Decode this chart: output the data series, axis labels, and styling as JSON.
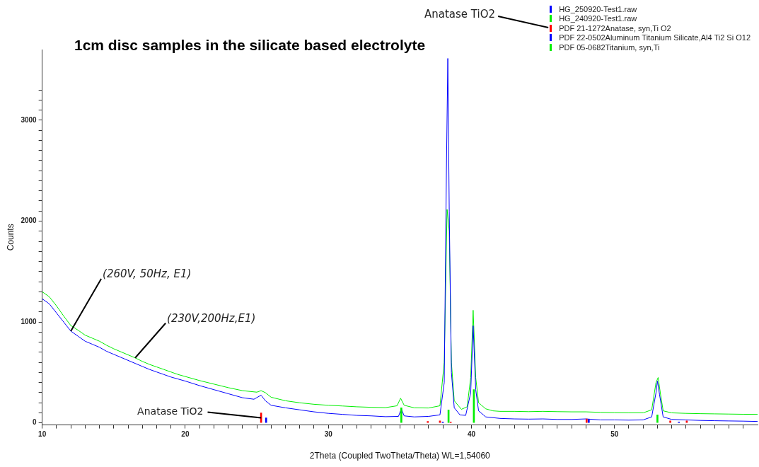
{
  "chart_data": {
    "type": "line",
    "title": "1cm disc samples in the silicate based electrolyte",
    "xlabel": "2Theta (Coupled TwoTheta/Theta) WL=1,54060",
    "ylabel": "Counts",
    "xlim": [
      10,
      60
    ],
    "ylim": [
      -20,
      3700
    ],
    "xticks": [
      10,
      {
        "value": 11,
        "label": null
      },
      {
        "value": 12,
        "label": null
      },
      {
        "value": 13,
        "label": null
      },
      {
        "value": 14,
        "label": null
      },
      {
        "value": 15,
        "label": null
      },
      {
        "value": 16,
        "label": null
      },
      {
        "value": 17,
        "label": null
      },
      {
        "value": 18,
        "label": null
      },
      {
        "value": 19,
        "label": null
      },
      20,
      {
        "value": 21,
        "label": null
      },
      {
        "value": 22,
        "label": null
      },
      {
        "value": 23,
        "label": null
      },
      {
        "value": 24,
        "label": null
      },
      {
        "value": 25,
        "label": null
      },
      {
        "value": 26,
        "label": null
      },
      {
        "value": 27,
        "label": null
      },
      {
        "value": 28,
        "label": null
      },
      {
        "value": 29,
        "label": null
      },
      30,
      {
        "value": 31,
        "label": null
      },
      {
        "value": 32,
        "label": null
      },
      {
        "value": 33,
        "label": null
      },
      {
        "value": 34,
        "label": null
      },
      {
        "value": 35,
        "label": null
      },
      {
        "value": 36,
        "label": null
      },
      {
        "value": 37,
        "label": null
      },
      {
        "value": 38,
        "label": null
      },
      {
        "value": 39,
        "label": null
      },
      40,
      {
        "value": 41,
        "label": null
      },
      {
        "value": 42,
        "label": null
      },
      {
        "value": 43,
        "label": null
      },
      {
        "value": 44,
        "label": null
      },
      {
        "value": 45,
        "label": null
      },
      {
        "value": 46,
        "label": null
      },
      {
        "value": 47,
        "label": null
      },
      {
        "value": 48,
        "label": null
      },
      {
        "value": 49,
        "label": null
      },
      50,
      {
        "value": 51,
        "label": null
      },
      {
        "value": 52,
        "label": null
      },
      {
        "value": 53,
        "label": null
      },
      {
        "value": 54,
        "label": null
      },
      {
        "value": 55,
        "label": null
      },
      {
        "value": 56,
        "label": null
      },
      {
        "value": 57,
        "label": null
      },
      {
        "value": 58,
        "label": null
      },
      {
        "value": 59,
        "label": null
      }
    ],
    "yticks": [
      0,
      {
        "value": 100,
        "label": null
      },
      {
        "value": 200,
        "label": null
      },
      {
        "value": 300,
        "label": null
      },
      {
        "value": 400,
        "label": null
      },
      {
        "value": 500,
        "label": null
      },
      {
        "value": 600,
        "label": null
      },
      {
        "value": 700,
        "label": null
      },
      {
        "value": 800,
        "label": null
      },
      {
        "value": 900,
        "label": null
      },
      1000,
      {
        "value": 1100,
        "label": null
      },
      {
        "value": 1200,
        "label": null
      },
      {
        "value": 1300,
        "label": null
      },
      {
        "value": 1400,
        "label": null
      },
      {
        "value": 1500,
        "label": null
      },
      {
        "value": 1600,
        "label": null
      },
      {
        "value": 1700,
        "label": null
      },
      {
        "value": 1800,
        "label": null
      },
      {
        "value": 1900,
        "label": null
      },
      2000,
      {
        "value": 2100,
        "label": null
      },
      {
        "value": 2200,
        "label": null
      },
      {
        "value": 2300,
        "label": null
      },
      {
        "value": 2400,
        "label": null
      },
      {
        "value": 2500,
        "label": null
      },
      {
        "value": 2600,
        "label": null
      },
      {
        "value": 2700,
        "label": null
      },
      {
        "value": 2800,
        "label": null
      },
      {
        "value": 2900,
        "label": null
      },
      3000,
      {
        "value": 3100,
        "label": null
      },
      {
        "value": 3200,
        "label": null
      },
      {
        "value": 3300,
        "label": null
      }
    ],
    "grid": false,
    "legend": "top right",
    "marker": "none",
    "line_style": "solid",
    "series": [
      {
        "name": "HG_250920-Test1.raw",
        "color": "#0000ff",
        "x": [
          10,
          10.5,
          11,
          11.5,
          12,
          12.5,
          13,
          13.5,
          14,
          14.5,
          15,
          15.5,
          16,
          16.5,
          17,
          17.5,
          18,
          18.5,
          19,
          19.5,
          20,
          21,
          22,
          23,
          24,
          24.8,
          25.3,
          25.6,
          26,
          27,
          28,
          29,
          30,
          31,
          32,
          33,
          34,
          34.9,
          35.1,
          35.3,
          36,
          37,
          37.8,
          38.1,
          38.25,
          38.35,
          38.45,
          38.6,
          38.8,
          39.2,
          39.6,
          39.95,
          40.12,
          40.3,
          40.5,
          41,
          42,
          43,
          44,
          45,
          46,
          47,
          48,
          49,
          50,
          51,
          52,
          52.6,
          52.9,
          53,
          53.15,
          53.4,
          54,
          55,
          56,
          57,
          58,
          59,
          60
        ],
        "values": [
          1230,
          1180,
          1090,
          1000,
          910,
          860,
          810,
          780,
          750,
          710,
          680,
          650,
          620,
          590,
          560,
          530,
          505,
          480,
          455,
          435,
          415,
          370,
          330,
          290,
          250,
          235,
          275,
          220,
          175,
          150,
          130,
          110,
          95,
          85,
          75,
          70,
          62,
          65,
          140,
          70,
          60,
          65,
          80,
          400,
          2480,
          3612,
          2100,
          500,
          150,
          80,
          75,
          300,
          963,
          330,
          120,
          60,
          45,
          40,
          38,
          40,
          35,
          35,
          40,
          30,
          30,
          28,
          30,
          60,
          300,
          415,
          280,
          60,
          35,
          30,
          25,
          22,
          20,
          18,
          15
        ]
      },
      {
        "name": "HG_240920-Test1.raw",
        "color": "#00ee00",
        "x": [
          10,
          10.5,
          11,
          11.5,
          12,
          12.5,
          13,
          13.5,
          14,
          14.5,
          15,
          15.5,
          16,
          16.5,
          17,
          17.5,
          18,
          18.5,
          19,
          19.5,
          20,
          21,
          22,
          23,
          24,
          25,
          25.3,
          25.6,
          26,
          27,
          28,
          29,
          30,
          31,
          32,
          33,
          34,
          34.8,
          35.05,
          35.3,
          36,
          37,
          37.8,
          38.1,
          38.3,
          38.45,
          38.6,
          38.8,
          39.3,
          39.7,
          39.95,
          40.12,
          40.3,
          40.5,
          41,
          41.5,
          42,
          43,
          44,
          45,
          46,
          47,
          48,
          49,
          50,
          51,
          52,
          52.6,
          52.9,
          53.05,
          53.2,
          53.4,
          54,
          55,
          56,
          57,
          58,
          59,
          60
        ],
        "values": [
          1300,
          1250,
          1160,
          1060,
          965,
          920,
          870,
          840,
          810,
          770,
          735,
          705,
          675,
          645,
          610,
          580,
          555,
          530,
          505,
          480,
          460,
          420,
          385,
          350,
          320,
          305,
          320,
          300,
          255,
          220,
          200,
          185,
          175,
          168,
          160,
          155,
          152,
          170,
          245,
          175,
          150,
          148,
          170,
          600,
          2115,
          1900,
          600,
          220,
          135,
          160,
          450,
          1117,
          450,
          200,
          140,
          120,
          115,
          115,
          112,
          115,
          112,
          110,
          110,
          105,
          102,
          100,
          100,
          130,
          400,
          450,
          300,
          120,
          100,
          95,
          92,
          90,
          88,
          86,
          85
        ]
      },
      {
        "name": "PDF 21-1272Anatase, syn,Ti O2",
        "type": "bar",
        "color": "#ff0000",
        "x": [
          25.3,
          36.95,
          37.8,
          38.55,
          48.05,
          53.9,
          55.05
        ],
        "values": [
          100,
          15,
          20,
          10,
          40,
          20,
          20
        ]
      },
      {
        "name": "PDF 22-0502Aluminum Titanium Silicate,Al4 Ti2 Si O12",
        "type": "bar",
        "color": "#0000ff",
        "x": [
          25.65,
          38,
          48.2,
          54.5
        ],
        "values": [
          50,
          10,
          35,
          10
        ]
      },
      {
        "name": "PDF 05-0682Titanium, syn,Ti",
        "type": "bar",
        "color": "#00ee00",
        "x": [
          35.1,
          38.4,
          40.17,
          53
        ],
        "values": [
          150,
          130,
          330,
          80
        ]
      }
    ],
    "annotations": [
      "Anatase TiO2",
      {
        "text": "(260V, 50Hz, E1)",
        "x": 12,
        "y": 910
      },
      {
        "text": "(230V,200Hz,E1)",
        "x": 16.5,
        "y": 645
      },
      {
        "text": "Anatase TiO2",
        "x": 25.3,
        "y": 50
      }
    ]
  }
}
